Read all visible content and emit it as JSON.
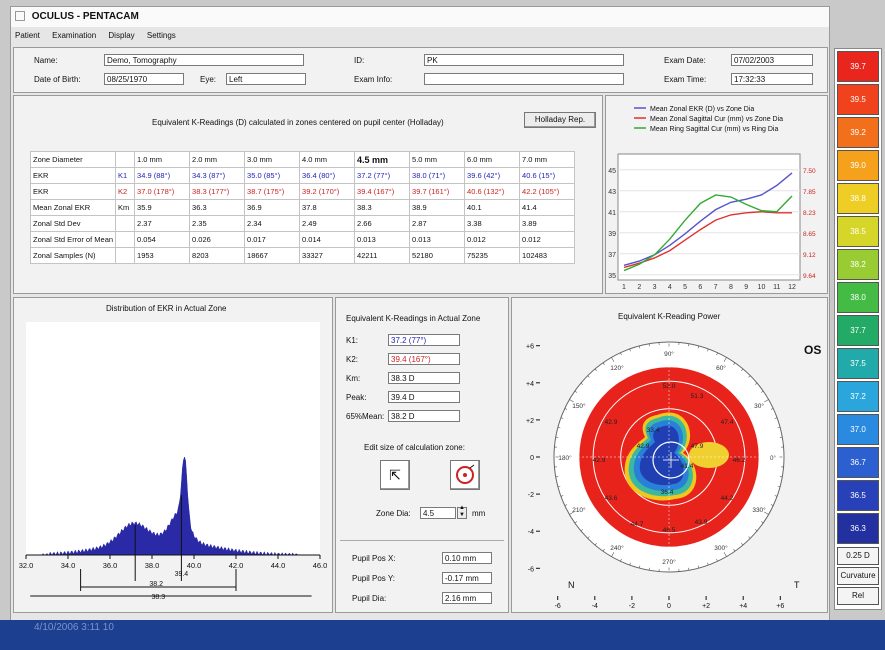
{
  "window": {
    "title": "OCULUS - PENTACAM",
    "menu": [
      "Patient",
      "Examination",
      "Display",
      "Settings"
    ]
  },
  "patient": {
    "name_label": "Name:",
    "name": "Demo, Tomography",
    "id_label": "ID:",
    "id": "PK",
    "exam_date_label": "Exam Date:",
    "exam_date": "07/02/2003",
    "dob_label": "Date of Birth:",
    "dob": "08/25/1970",
    "eye_label": "Eye:",
    "eye": "Left",
    "exam_info_label": "Exam Info:",
    "exam_info": "",
    "exam_time_label": "Exam Time:",
    "exam_time": "17:32:33"
  },
  "ekr_table": {
    "title": "Equivalent K-Readings (D) calculated in zones centered on pupil center (Holladay)",
    "button": "Holladay Rep.",
    "header": [
      "Zone Diameter",
      "",
      "1.0 mm",
      "2.0 mm",
      "3.0 mm",
      "4.0 mm",
      "4.5 mm",
      "5.0 mm",
      "6.0 mm",
      "7.0 mm"
    ],
    "rows": [
      [
        "EKR",
        "K1",
        "34.9 (88°)",
        "34.3 (87°)",
        "35.0 (85°)",
        "36.4 (80°)",
        "37.2 (77°)",
        "38.0 (71°)",
        "39.6 (42°)",
        "40.6 (15°)"
      ],
      [
        "EKR",
        "K2",
        "37.0 (178°)",
        "38.3 (177°)",
        "38.7 (175°)",
        "39.2 (170°)",
        "39.4 (167°)",
        "39.7 (161°)",
        "40.6 (132°)",
        "42.2 (105°)"
      ],
      [
        "Mean Zonal EKR",
        "Km",
        "35.9",
        "36.3",
        "36.9",
        "37.8",
        "38.3",
        "38.9",
        "40.1",
        "41.4"
      ],
      [
        "Zonal Std Dev",
        "",
        "2.37",
        "2.35",
        "2.34",
        "2.49",
        "2.66",
        "2.87",
        "3.38",
        "3.89"
      ],
      [
        "Zonal Std Error of Mean",
        "",
        "0.054",
        "0.026",
        "0.017",
        "0.014",
        "0.013",
        "0.013",
        "0.012",
        "0.012"
      ],
      [
        "Zonal Samples (N)",
        "",
        "1953",
        "8203",
        "18667",
        "33327",
        "42211",
        "52180",
        "75235",
        "102483"
      ]
    ]
  },
  "line_chart": {
    "legend": [
      "Mean Zonal EKR (D) vs Zone Dia",
      "Mean Zonal Sagittal Cur (mm) vs Zone Dia",
      "Mean Ring Sagittal Cur (mm) vs Ring Dia"
    ],
    "colors": [
      "#5555cc",
      "#dd3333",
      "#33aa33"
    ],
    "left_ticks": [
      "45",
      "43",
      "41",
      "39",
      "37",
      "35"
    ],
    "right_ticks": [
      "7.50",
      "7.85",
      "8.23",
      "8.65",
      "9.12",
      "9.64"
    ],
    "x_ticks": [
      "1",
      "2",
      "3",
      "4",
      "5",
      "6",
      "7",
      "8",
      "9",
      "10",
      "11",
      "12"
    ]
  },
  "chart_data": {
    "type": "line",
    "x": [
      1,
      2,
      3,
      4,
      5,
      6,
      7,
      8,
      9,
      10,
      11,
      12
    ],
    "series": [
      {
        "name": "Mean Zonal EKR (D) vs Zone Dia",
        "values": [
          35.9,
          36.3,
          36.9,
          37.8,
          38.9,
          40.1,
          41.2,
          41.9,
          42.2,
          42.6,
          43.5,
          44.7
        ]
      },
      {
        "name": "Mean Zonal Sagittal Cur (mm) vs Zone Dia",
        "values": [
          35.7,
          36.1,
          36.6,
          37.3,
          38.3,
          39.3,
          40.2,
          40.7,
          40.9,
          41.0,
          40.9,
          40.9
        ]
      },
      {
        "name": "Mean Ring Sagittal Cur (mm) vs Ring Dia",
        "values": [
          35.4,
          36.0,
          36.9,
          38.4,
          40.2,
          41.8,
          42.6,
          42.4,
          41.7,
          41.1,
          41.0,
          42.5
        ]
      }
    ],
    "ylim": [
      34.5,
      46.5
    ]
  },
  "histogram": {
    "title": "Distribution of EKR in Actual Zone",
    "x_ticks": [
      "32.0",
      "34.0",
      "36.0",
      "38.0",
      "40.0",
      "42.0",
      "44.0",
      "46.0"
    ],
    "marker_a": "38.2",
    "marker_b": "39.4",
    "marker_c": "38.3"
  },
  "actual_zone": {
    "title": "Equivalent K-Readings in Actual Zone",
    "k1_label": "K1:",
    "k1": "37.2 (77°)",
    "k2_label": "K2:",
    "k2": "39.4 (167°)",
    "km_label": "Km:",
    "km": "38.3 D",
    "peak_label": "Peak:",
    "peak": "39.4 D",
    "mean_label": "65%Mean:",
    "mean": "38.2 D",
    "edit_label": "Edit size of calculation zone:",
    "zone_dia_label": "Zone Dia:",
    "zone_dia": "4.5",
    "zone_unit": "mm",
    "pupil_x_label": "Pupil Pos X:",
    "pupil_x": "0.10 mm",
    "pupil_y_label": "Pupil Pos Y:",
    "pupil_y": "-0.17 mm",
    "pupil_dia_label": "Pupil Dia:",
    "pupil_dia": "2.16 mm"
  },
  "power_map": {
    "title": "Equivalent K-Reading Power",
    "eye": "OS",
    "y_ticks": [
      "+6",
      "+4",
      "+2",
      "0",
      "-2",
      "-4",
      "-6"
    ],
    "x_ticks": [
      "-6",
      "-4",
      "-2",
      "0",
      "+2",
      "+4",
      "+6"
    ],
    "nasal": "N",
    "temporal": "T",
    "angles": [
      "90°",
      "60°",
      "30°",
      "0°",
      "330°",
      "300°",
      "270°",
      "240°",
      "210°",
      "180°",
      "150°",
      "120°"
    ],
    "values": [
      "52.0",
      "51.3",
      "47.4",
      "42.9",
      "46.2",
      "42.9",
      "44.2",
      "43.6",
      "44.7",
      "46.5",
      "43.9",
      "42.9",
      "36.4",
      "41.4",
      "47.9",
      "33.4"
    ]
  },
  "color_scale": {
    "steps": [
      {
        "label": "39.7",
        "color": "#e8261e"
      },
      {
        "label": "39.5",
        "color": "#f0421c"
      },
      {
        "label": "39.2",
        "color": "#f2701c"
      },
      {
        "label": "39.0",
        "color": "#f5a11c"
      },
      {
        "label": "38.8",
        "color": "#eecd24"
      },
      {
        "label": "38.5",
        "color": "#d6d52a"
      },
      {
        "label": "38.2",
        "color": "#99cc33"
      },
      {
        "label": "38.0",
        "color": "#44bb44"
      },
      {
        "label": "37.7",
        "color": "#22aa66"
      },
      {
        "label": "37.5",
        "color": "#22aaaa"
      },
      {
        "label": "37.2",
        "color": "#2aa6dd"
      },
      {
        "label": "37.0",
        "color": "#2a8ae0"
      },
      {
        "label": "36.7",
        "color": "#2c5fd0"
      },
      {
        "label": "36.5",
        "color": "#2840b8"
      },
      {
        "label": "36.3",
        "color": "#2230a0"
      }
    ],
    "step_label": "0.25 D",
    "mode_label": "Curvature",
    "rel_label": "Rel"
  },
  "taskbar": {
    "timestamp": "4/10/2006 3:11 10"
  }
}
